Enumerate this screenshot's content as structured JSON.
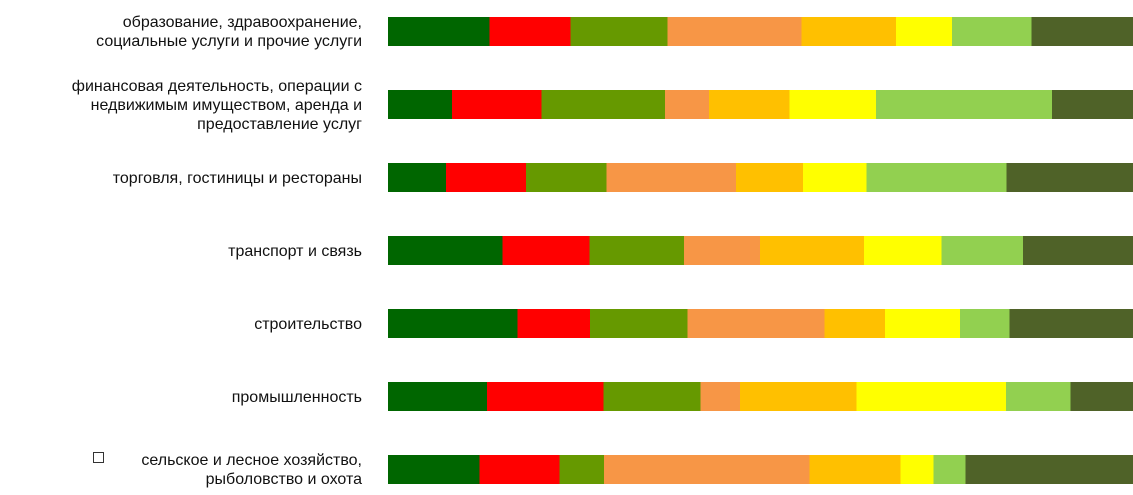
{
  "chart_data": {
    "type": "bar",
    "orientation": "horizontal",
    "stacked": "percent",
    "categories": [
      "образование, здравоохранение,\nсоциальные услуги и прочие услуги",
      "финансовая деятельность, операции с\nнедвижимым имуществом, аренда и\nпредоставление услуг",
      "торговля, гостиницы и рестораны",
      "транспорт и связь",
      "строительство",
      "промышленность",
      "сельское и лесное хозяйство,\nрыболовство и охота"
    ],
    "series": [
      {
        "color": "#006600",
        "values": [
          13.6,
          8.6,
          7.8,
          15.3,
          17.4,
          13.3,
          12.3
        ]
      },
      {
        "color": "#ff0000",
        "values": [
          10.9,
          12.0,
          10.7,
          11.6,
          9.7,
          15.6,
          10.7
        ]
      },
      {
        "color": "#669900",
        "values": [
          13.0,
          16.6,
          10.8,
          12.6,
          13.1,
          13.0,
          6.0
        ]
      },
      {
        "color": "#f79646",
        "values": [
          18.0,
          5.9,
          17.4,
          10.2,
          18.4,
          5.3,
          27.6
        ]
      },
      {
        "color": "#ffc000",
        "values": [
          12.7,
          10.8,
          9.0,
          13.9,
          8.1,
          15.6,
          12.2
        ]
      },
      {
        "color": "#ffff00",
        "values": [
          7.5,
          11.6,
          8.5,
          10.3,
          10.1,
          20.1,
          4.4
        ]
      },
      {
        "color": "#92d050",
        "values": [
          10.7,
          23.6,
          18.8,
          10.9,
          6.6,
          8.6,
          4.3
        ]
      },
      {
        "color": "#4f6228",
        "values": [
          13.6,
          10.9,
          17.0,
          14.7,
          16.6,
          8.4,
          22.5
        ]
      }
    ],
    "xlim": [
      0,
      100
    ],
    "grid": false,
    "legend": "none"
  },
  "ui": {
    "cursor_icon": "text-cursor-box-icon"
  }
}
